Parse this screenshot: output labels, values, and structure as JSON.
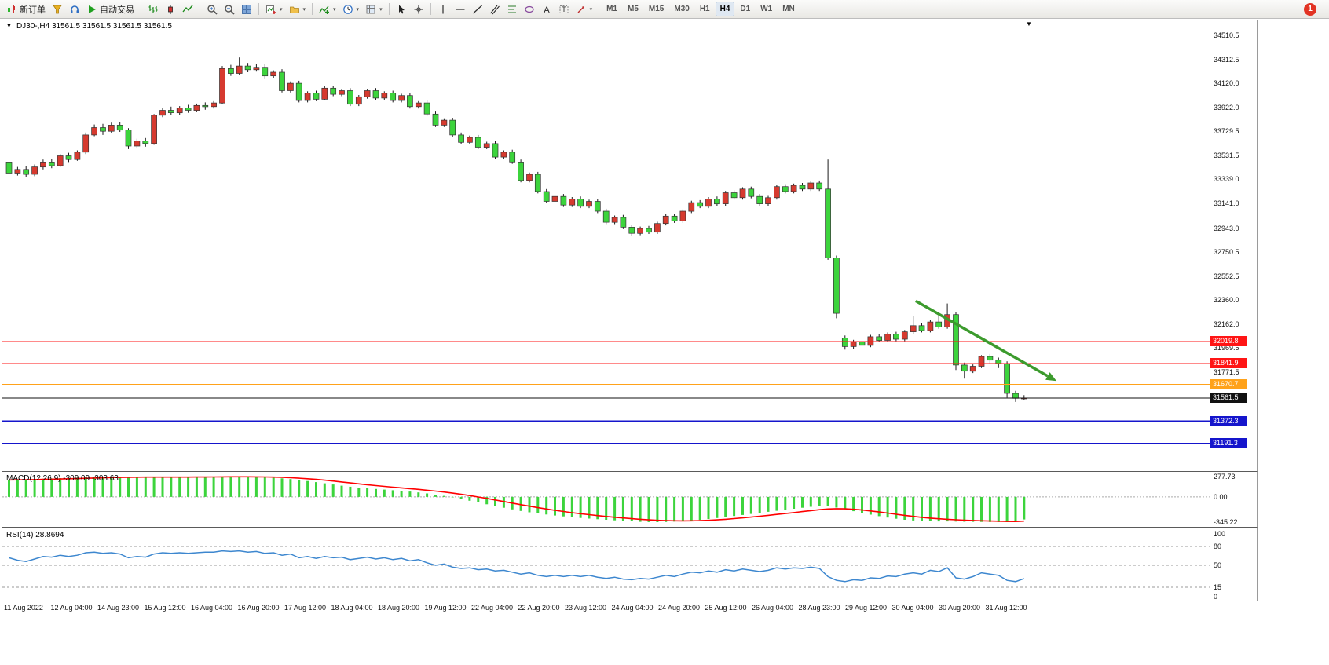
{
  "app": {
    "badge_count": "1"
  },
  "glyphs": {
    "triangle_down": "▼",
    "caret": "▾"
  },
  "toolbar": {
    "groups": [
      {
        "buttons": [
          {
            "name": "new-order",
            "icon": "candles",
            "label": "新订单"
          },
          {
            "name": "wizard",
            "icon": "wizard"
          },
          {
            "name": "sounds",
            "icon": "headset"
          },
          {
            "name": "autotrading",
            "icon": "play",
            "label": "自动交易"
          }
        ]
      },
      {
        "buttons": [
          {
            "name": "bar-chart",
            "icon": "bars"
          },
          {
            "name": "candlestick-chart",
            "icon": "candle"
          },
          {
            "name": "line-chart",
            "icon": "linechart"
          }
        ]
      },
      {
        "buttons": [
          {
            "name": "zoom-in",
            "icon": "zoomin"
          },
          {
            "name": "zoom-out",
            "icon": "zoomout"
          },
          {
            "name": "tile-windows",
            "icon": "tile"
          }
        ]
      },
      {
        "buttons": [
          {
            "name": "new-chart",
            "icon": "newchart",
            "dropdown": true
          },
          {
            "name": "profiles",
            "icon": "profiles",
            "dropdown": true
          }
        ]
      },
      {
        "buttons": [
          {
            "name": "indicators",
            "icon": "indicator",
            "dropdown": true
          },
          {
            "name": "periods",
            "icon": "clock",
            "dropdown": true
          },
          {
            "name": "templates",
            "icon": "template",
            "dropdown": true
          }
        ]
      },
      {
        "buttons": [
          {
            "name": "cursor",
            "icon": "cursor"
          },
          {
            "name": "crosshair",
            "icon": "crosshair"
          }
        ]
      },
      {
        "buttons": [
          {
            "name": "vertical-line",
            "icon": "vline"
          },
          {
            "name": "horizontal-line",
            "icon": "hline"
          },
          {
            "name": "trendline",
            "icon": "trendline"
          },
          {
            "name": "channel",
            "icon": "channel"
          },
          {
            "name": "fibonacci",
            "icon": "fibo"
          },
          {
            "name": "shapes",
            "icon": "shapes"
          },
          {
            "name": "text",
            "icon": "textA"
          },
          {
            "name": "text-label",
            "icon": "labelT"
          },
          {
            "name": "arrows",
            "icon": "arrowsmenu",
            "dropdown": true
          }
        ]
      }
    ]
  },
  "timeframes": {
    "items": [
      "M1",
      "M5",
      "M15",
      "M30",
      "H1",
      "H4",
      "D1",
      "W1",
      "MN"
    ],
    "active": "H4"
  },
  "chart_data": [
    {
      "type": "candlestick",
      "title": "DJ30-,H4 31561.5 31561.5 31561.5 31561.5",
      "symbol": "DJ30-",
      "period": "H4",
      "up_color": "#d63a2f",
      "down_color": "#3cd43c",
      "wick_color": "#1a1a1a",
      "ylim": [
        30968,
        34631
      ],
      "price_ticks": [
        "34510.5",
        "34312.5",
        "34120.0",
        "33922.0",
        "33729.5",
        "33531.5",
        "33339.0",
        "33141.0",
        "32943.0",
        "32750.5",
        "32552.5",
        "32360.0",
        "32162.0",
        "31969.5",
        "31771.5"
      ],
      "hlines": [
        {
          "price": 32019.8,
          "label": "32019.8",
          "color": "#ff1515",
          "width": 1
        },
        {
          "price": 31841.9,
          "label": "31841.9",
          "color": "#ff1515",
          "width": 1
        },
        {
          "price": 31670.7,
          "label": "31670.7",
          "color": "#ffa21a",
          "width": 2
        },
        {
          "price": 31561.5,
          "label": "31561.5",
          "color": "#111111",
          "width": 1
        },
        {
          "price": 31372.3,
          "label": "31372.3",
          "color": "#1515cc",
          "width": 2
        },
        {
          "price": 31191.3,
          "label": "31191.3",
          "color": "#1515cc",
          "width": 2
        }
      ],
      "arrow": {
        "from_index": 106.3,
        "from_price": 32350,
        "to_index": 122.8,
        "to_price": 31700,
        "color": "#3c9b2d",
        "width": 3.5
      },
      "x_labels": [
        "11 Aug 2022",
        "12 Aug 04:00",
        "14 Aug 23:00",
        "15 Aug 12:00",
        "16 Aug 04:00",
        "16 Aug 20:00",
        "17 Aug 12:00",
        "18 Aug 04:00",
        "18 Aug 20:00",
        "19 Aug 12:00",
        "22 Aug 04:00",
        "22 Aug 20:00",
        "23 Aug 12:00",
        "24 Aug 04:00",
        "24 Aug 20:00",
        "25 Aug 12:00",
        "26 Aug 04:00",
        "28 Aug 23:00",
        "29 Aug 12:00",
        "30 Aug 04:00",
        "30 Aug 20:00",
        "31 Aug 12:00"
      ],
      "ohlc": [
        [
          33480,
          33500,
          33360,
          33390
        ],
        [
          33390,
          33440,
          33370,
          33420
        ],
        [
          33420,
          33445,
          33355,
          33380
        ],
        [
          33380,
          33460,
          33365,
          33440
        ],
        [
          33440,
          33500,
          33420,
          33480
        ],
        [
          33480,
          33505,
          33430,
          33450
        ],
        [
          33450,
          33545,
          33440,
          33530
        ],
        [
          33530,
          33555,
          33480,
          33500
        ],
        [
          33500,
          33575,
          33490,
          33560
        ],
        [
          33560,
          33720,
          33545,
          33700
        ],
        [
          33700,
          33785,
          33690,
          33760
        ],
        [
          33760,
          33790,
          33700,
          33730
        ],
        [
          33730,
          33800,
          33715,
          33780
        ],
        [
          33780,
          33805,
          33725,
          33740
        ],
        [
          33740,
          33755,
          33585,
          33610
        ],
        [
          33610,
          33670,
          33590,
          33650
        ],
        [
          33650,
          33675,
          33605,
          33630
        ],
        [
          33630,
          33870,
          33620,
          33860
        ],
        [
          33860,
          33920,
          33845,
          33900
        ],
        [
          33900,
          33930,
          33860,
          33880
        ],
        [
          33880,
          33935,
          33865,
          33920
        ],
        [
          33920,
          33945,
          33880,
          33900
        ],
        [
          33900,
          33955,
          33885,
          33940
        ],
        [
          33940,
          33965,
          33905,
          33930
        ],
        [
          33930,
          33975,
          33915,
          33960
        ],
        [
          33960,
          34260,
          33950,
          34240
        ],
        [
          34240,
          34270,
          34180,
          34200
        ],
        [
          34200,
          34330,
          34190,
          34260
        ],
        [
          34260,
          34285,
          34210,
          34230
        ],
        [
          34230,
          34280,
          34215,
          34250
        ],
        [
          34250,
          34275,
          34160,
          34180
        ],
        [
          34180,
          34225,
          34165,
          34210
        ],
        [
          34210,
          34235,
          34045,
          34060
        ],
        [
          34060,
          34135,
          34045,
          34120
        ],
        [
          34120,
          34140,
          33965,
          33980
        ],
        [
          33980,
          34055,
          33965,
          34040
        ],
        [
          34040,
          34060,
          33975,
          33990
        ],
        [
          33990,
          34095,
          33980,
          34080
        ],
        [
          34080,
          34100,
          34015,
          34030
        ],
        [
          34030,
          34075,
          34015,
          34060
        ],
        [
          34060,
          34080,
          33935,
          33950
        ],
        [
          33950,
          34025,
          33935,
          34010
        ],
        [
          34010,
          34075,
          33995,
          34060
        ],
        [
          34060,
          34080,
          33985,
          34000
        ],
        [
          34000,
          34055,
          33985,
          34040
        ],
        [
          34040,
          34060,
          33965,
          33980
        ],
        [
          33980,
          34035,
          33965,
          34020
        ],
        [
          34020,
          34040,
          33915,
          33930
        ],
        [
          33930,
          33975,
          33915,
          33960
        ],
        [
          33960,
          33980,
          33855,
          33870
        ],
        [
          33870,
          33890,
          33765,
          33780
        ],
        [
          33780,
          33835,
          33765,
          33820
        ],
        [
          33820,
          33840,
          33685,
          33700
        ],
        [
          33700,
          33720,
          33625,
          33640
        ],
        [
          33640,
          33695,
          33625,
          33680
        ],
        [
          33680,
          33700,
          33585,
          33600
        ],
        [
          33600,
          33645,
          33585,
          33630
        ],
        [
          33630,
          33650,
          33505,
          33520
        ],
        [
          33520,
          33575,
          33505,
          33560
        ],
        [
          33560,
          33580,
          33465,
          33480
        ],
        [
          33480,
          33500,
          33315,
          33330
        ],
        [
          33330,
          33395,
          33315,
          33380
        ],
        [
          33380,
          33400,
          33225,
          33240
        ],
        [
          33240,
          33260,
          33145,
          33160
        ],
        [
          33160,
          33215,
          33145,
          33200
        ],
        [
          33200,
          33220,
          33115,
          33130
        ],
        [
          33130,
          33195,
          33115,
          33180
        ],
        [
          33180,
          33200,
          33105,
          33120
        ],
        [
          33120,
          33175,
          33105,
          33160
        ],
        [
          33160,
          33180,
          33065,
          33080
        ],
        [
          33080,
          33100,
          32975,
          32990
        ],
        [
          32990,
          33045,
          32975,
          33030
        ],
        [
          33030,
          33050,
          32935,
          32950
        ],
        [
          32950,
          32970,
          32880,
          32900
        ],
        [
          32900,
          32955,
          32885,
          32940
        ],
        [
          32940,
          32960,
          32895,
          32910
        ],
        [
          32910,
          32995,
          32895,
          32980
        ],
        [
          32980,
          33055,
          32965,
          33040
        ],
        [
          33040,
          33060,
          32985,
          33000
        ],
        [
          33000,
          33095,
          32985,
          33080
        ],
        [
          33080,
          33165,
          33065,
          33150
        ],
        [
          33150,
          33170,
          33105,
          33120
        ],
        [
          33120,
          33195,
          33105,
          33180
        ],
        [
          33180,
          33200,
          33125,
          33140
        ],
        [
          33140,
          33245,
          33125,
          33230
        ],
        [
          33230,
          33250,
          33175,
          33190
        ],
        [
          33190,
          33275,
          33175,
          33260
        ],
        [
          33260,
          33280,
          33185,
          33200
        ],
        [
          33200,
          33220,
          33125,
          33140
        ],
        [
          33140,
          33205,
          33125,
          33190
        ],
        [
          33190,
          33295,
          33175,
          33280
        ],
        [
          33280,
          33300,
          33225,
          33240
        ],
        [
          33240,
          33305,
          33225,
          33290
        ],
        [
          33290,
          33310,
          33245,
          33260
        ],
        [
          33260,
          33325,
          33245,
          33310
        ],
        [
          33310,
          33330,
          33245,
          33260
        ],
        [
          33260,
          33500,
          32685,
          32700
        ],
        [
          32700,
          32720,
          32210,
          32250
        ],
        [
          32050,
          32070,
          31955,
          31980
        ],
        [
          31980,
          32035,
          31960,
          32020
        ],
        [
          32020,
          32040,
          31975,
          31990
        ],
        [
          31990,
          32075,
          31975,
          32060
        ],
        [
          32060,
          32080,
          32015,
          32030
        ],
        [
          32030,
          32095,
          32015,
          32080
        ],
        [
          32080,
          32100,
          32025,
          32040
        ],
        [
          32040,
          32115,
          32025,
          32100
        ],
        [
          32100,
          32230,
          32085,
          32150
        ],
        [
          32150,
          32170,
          32095,
          32110
        ],
        [
          32110,
          32195,
          32095,
          32180
        ],
        [
          32180,
          32250,
          32125,
          32140
        ],
        [
          32140,
          32330,
          32125,
          32240
        ],
        [
          32240,
          32260,
          31790,
          31830
        ],
        [
          31830,
          31850,
          31720,
          31780
        ],
        [
          31780,
          31835,
          31765,
          31820
        ],
        [
          31820,
          31910,
          31805,
          31900
        ],
        [
          31900,
          31920,
          31845,
          31870
        ],
        [
          31870,
          31890,
          31805,
          31840
        ],
        [
          31840,
          31860,
          31565,
          31600
        ],
        [
          31600,
          31620,
          31530,
          31560
        ],
        [
          31560,
          31585,
          31545,
          31561.5
        ]
      ]
    },
    {
      "type": "macd-histogram",
      "label": "MACD(12,26,9) -309.09 -303.63",
      "bar_color": "#3cd43c",
      "signal_color": "#ff0000",
      "ylim": [
        -345.22,
        277.73
      ],
      "axis_ticks": [
        "277.73",
        "0.00",
        "-345.22"
      ],
      "values": [
        232,
        236,
        240,
        244,
        248,
        252,
        256,
        259,
        263,
        268,
        271,
        273,
        275,
        276,
        276,
        275,
        273,
        271,
        270,
        270,
        271,
        272,
        273,
        274,
        276,
        277.7,
        277,
        275,
        273,
        271,
        267,
        261,
        253,
        243,
        231,
        217,
        201,
        185,
        169,
        153,
        139,
        127,
        117,
        108,
        99,
        91,
        83,
        73,
        61,
        47,
        31,
        13,
        -7,
        -29,
        -53,
        -77,
        -101,
        -125,
        -149,
        -171,
        -193,
        -211,
        -227,
        -241,
        -255,
        -267,
        -278,
        -288,
        -297,
        -305,
        -313,
        -321,
        -328,
        -335,
        -341,
        -344,
        -345.2,
        -343,
        -338,
        -332,
        -324,
        -314,
        -302,
        -289,
        -275,
        -261,
        -247,
        -233,
        -219,
        -205,
        -191,
        -177,
        -163,
        -149,
        -136,
        -124,
        -128,
        -146,
        -170,
        -196,
        -220,
        -243,
        -264,
        -283,
        -299,
        -313,
        -323,
        -330,
        -334,
        -336,
        -336,
        -338,
        -340,
        -341,
        -342,
        -343,
        -344,
        -345,
        -340,
        -309.1
      ]
    },
    {
      "type": "line",
      "label": "RSI(14) 28.8694",
      "line_color": "#3d87cf",
      "ylim": [
        0,
        100
      ],
      "levels": [
        80,
        50,
        15
      ],
      "axis_ticks": [
        "100",
        "80",
        "50",
        "15",
        "0"
      ],
      "values": [
        62,
        58,
        56,
        60,
        64,
        63,
        66,
        64,
        66,
        70,
        71,
        69,
        70,
        68,
        62,
        64,
        63,
        68,
        70,
        69,
        70,
        69,
        70,
        71,
        71,
        73,
        72,
        73,
        71,
        72,
        69,
        70,
        66,
        68,
        62,
        64,
        61,
        64,
        62,
        63,
        59,
        61,
        63,
        60,
        62,
        59,
        61,
        57,
        59,
        54,
        50,
        52,
        47,
        45,
        46,
        43,
        44,
        41,
        42,
        39,
        36,
        38,
        34,
        32,
        34,
        32,
        34,
        32,
        34,
        31,
        29,
        31,
        28,
        27,
        29,
        28,
        31,
        34,
        32,
        36,
        39,
        38,
        41,
        39,
        43,
        41,
        44,
        42,
        40,
        42,
        46,
        44,
        46,
        45,
        47,
        45,
        32,
        26,
        24,
        27,
        26,
        30,
        29,
        33,
        32,
        36,
        38,
        36,
        42,
        40,
        46,
        30,
        28,
        32,
        38,
        36,
        34,
        26,
        24,
        28.87
      ]
    }
  ]
}
